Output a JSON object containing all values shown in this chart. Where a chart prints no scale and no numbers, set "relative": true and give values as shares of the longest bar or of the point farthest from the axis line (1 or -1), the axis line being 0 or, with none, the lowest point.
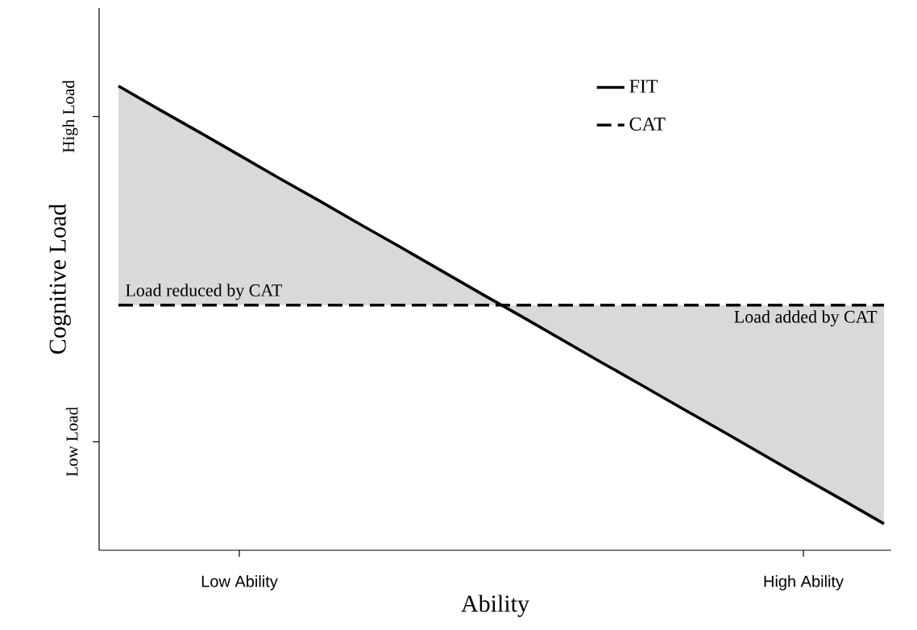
{
  "chart_data": {
    "type": "line",
    "relative": true,
    "xlabel": "Ability",
    "ylabel": "Cognitive Load",
    "categories": [
      null,
      null,
      null,
      "Low Ability",
      null,
      null,
      null,
      null,
      null,
      null,
      null,
      null,
      null,
      null,
      null,
      null,
      null,
      "High Ability",
      null,
      null
    ],
    "series": [
      {
        "name": "FIT",
        "color": "#000000",
        "line_style": "solid",
        "values": [
          1,
          0.95,
          0.901,
          0.851,
          0.801,
          0.752,
          0.702,
          0.653,
          0.603,
          0.553,
          0.504,
          0.454,
          0.404,
          0.355,
          0.305,
          0.256,
          0.206,
          0.156,
          0.107,
          0.057
        ]
      },
      {
        "name": "CAT",
        "color": "#000000",
        "line_style": "dashed",
        "values": [
          0.528,
          0.528,
          0.528,
          0.528,
          0.528,
          0.528,
          0.528,
          0.528,
          0.528,
          0.528,
          0.528,
          0.528,
          0.528,
          0.528,
          0.528,
          0.528,
          0.528,
          0.528,
          0.528,
          0.528
        ]
      }
    ],
    "annotations": [
      "Load reduced by CAT",
      "Load added by CAT",
      "Low Load",
      "High Load"
    ],
    "legend": "top right",
    "marker": "none"
  }
}
